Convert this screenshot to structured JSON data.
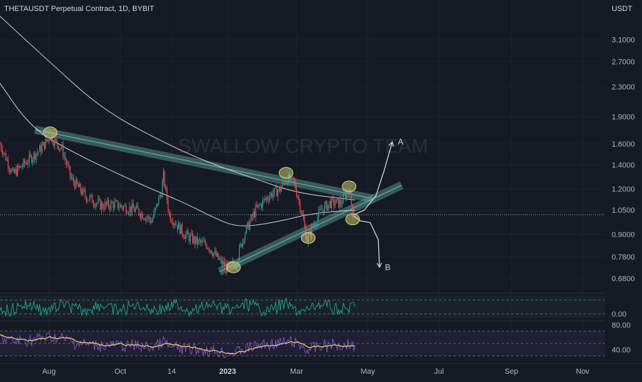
{
  "header": {
    "symbol_title": "THETAUSDT Perpetual Contract, 1D, BYBIT",
    "currency": "USDT"
  },
  "watermark": "SWALLOW CRYPTO TEAM",
  "annotations": {
    "scenario_a": "A",
    "scenario_b": "B"
  },
  "colors": {
    "background": "#161a25",
    "bull_candle": "#26a69a",
    "bear_candle": "#ef5350",
    "channel_fill": "#5fa89e",
    "pivot_marker": "#c8c86e",
    "ma_line": "#e8e8e8",
    "rsi_line": "#7e57c2",
    "rsi_signal": "#f5d35e",
    "osc_line": "#26a69a"
  },
  "chart_data": {
    "type": "candlestick",
    "title": "THETAUSDT Perpetual Contract, 1D, BYBIT",
    "price_axis": {
      "scale": "log",
      "ticks": [
        "3.1000",
        "2.7000",
        "2.3000",
        "1.9000",
        "1.6000",
        "1.4000",
        "1.2000",
        "1.0500",
        "0.9000",
        "0.7800",
        "0.6800"
      ],
      "range": [
        0.63,
        3.5
      ]
    },
    "time_axis": {
      "ticks": [
        "Aug",
        "Oct",
        "14",
        "2023",
        "Mar",
        "May",
        "Jul",
        "Sep",
        "Nov"
      ],
      "start": "2022-06-20",
      "end": "2023-11-20"
    },
    "last_price": 1.02,
    "close_path": [
      [
        "2022-06-20",
        1.6
      ],
      [
        "2022-07-01",
        1.32
      ],
      [
        "2022-07-15",
        1.45
      ],
      [
        "2022-07-25",
        1.55
      ],
      [
        "2022-08-02",
        1.68
      ],
      [
        "2022-08-12",
        1.55
      ],
      [
        "2022-08-20",
        1.28
      ],
      [
        "2022-09-01",
        1.15
      ],
      [
        "2022-09-15",
        1.08
      ],
      [
        "2022-09-25",
        1.09
      ],
      [
        "2022-10-15",
        1.05
      ],
      [
        "2022-10-28",
        0.98
      ],
      [
        "2022-11-05",
        1.18
      ],
      [
        "2022-11-07",
        1.3
      ],
      [
        "2022-11-12",
        1.02
      ],
      [
        "2022-11-25",
        0.9
      ],
      [
        "2022-12-05",
        0.86
      ],
      [
        "2022-12-15",
        0.84
      ],
      [
        "2022-12-25",
        0.76
      ],
      [
        "2023-01-01",
        0.73
      ],
      [
        "2023-01-08",
        0.75
      ],
      [
        "2023-01-15",
        0.9
      ],
      [
        "2023-01-25",
        1.05
      ],
      [
        "2023-02-05",
        1.15
      ],
      [
        "2023-02-15",
        1.2
      ],
      [
        "2023-02-20",
        1.28
      ],
      [
        "2023-02-27",
        1.25
      ],
      [
        "2023-03-05",
        1.05
      ],
      [
        "2023-03-10",
        0.87
      ],
      [
        "2023-03-15",
        0.95
      ],
      [
        "2023-03-22",
        1.05
      ],
      [
        "2023-03-30",
        1.1
      ],
      [
        "2023-04-08",
        1.1
      ],
      [
        "2023-04-15",
        1.2
      ],
      [
        "2023-04-18",
        1.04
      ],
      [
        "2023-04-20",
        1.02
      ]
    ],
    "moving_averages": [
      {
        "points": [
          [
            "2022-06-20",
            3.6
          ],
          [
            "2022-08-01",
            2.7
          ],
          [
            "2022-09-15",
            2.0
          ],
          [
            "2022-11-01",
            1.65
          ],
          [
            "2022-12-15",
            1.42
          ],
          [
            "2023-01-25",
            1.28
          ],
          [
            "2023-03-01",
            1.17
          ],
          [
            "2023-04-20",
            1.12
          ]
        ]
      },
      {
        "points": [
          [
            "2022-06-20",
            2.35
          ],
          [
            "2022-07-15",
            1.8
          ],
          [
            "2022-08-15",
            1.55
          ],
          [
            "2022-10-15",
            1.25
          ],
          [
            "2022-11-25",
            1.1
          ],
          [
            "2022-12-20",
            1.0
          ],
          [
            "2023-01-10",
            0.94
          ],
          [
            "2023-02-10",
            0.97
          ],
          [
            "2023-03-15",
            1.03
          ],
          [
            "2023-04-20",
            1.05
          ]
        ]
      }
    ],
    "trendlines": [
      {
        "from": [
          "2022-07-20",
          1.75
        ],
        "to": [
          "2023-05-05",
          1.13
        ]
      },
      {
        "from": [
          "2022-12-25",
          0.71
        ],
        "to": [
          "2023-05-30",
          1.23
        ]
      }
    ],
    "pivots": [
      [
        "2022-08-02",
        1.72
      ],
      [
        "2023-02-20",
        1.33
      ],
      [
        "2023-04-15",
        1.22
      ],
      [
        "2023-01-06",
        0.73
      ],
      [
        "2023-03-11",
        0.88
      ],
      [
        "2023-04-18",
        0.99
      ]
    ],
    "scenarios": [
      {
        "label": "A",
        "path": [
          [
            "2023-04-19",
            1.02
          ],
          [
            "2023-04-28",
            1.05
          ],
          [
            "2023-05-08",
            1.15
          ],
          [
            "2023-05-15",
            1.35
          ],
          [
            "2023-05-22",
            1.62
          ]
        ]
      },
      {
        "label": "B",
        "path": [
          [
            "2023-04-19",
            1.01
          ],
          [
            "2023-04-25",
            0.98
          ],
          [
            "2023-05-03",
            0.97
          ],
          [
            "2023-05-10",
            0.87
          ],
          [
            "2023-05-11",
            0.73
          ]
        ]
      }
    ],
    "oscillator": {
      "ticks": [
        "0.00"
      ]
    },
    "rsi": {
      "ticks": [
        "80.00",
        "40.00"
      ]
    }
  }
}
